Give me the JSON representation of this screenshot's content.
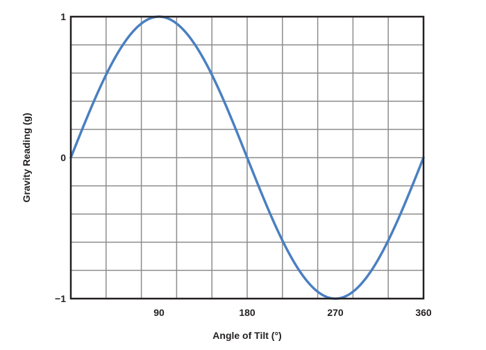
{
  "chart_data": {
    "type": "line",
    "title": "",
    "xlabel": "Angle of Tilt (°)",
    "ylabel": "Gravity Reading (g)",
    "xlim": [
      0,
      360
    ],
    "ylim": [
      -1,
      1
    ],
    "x_ticks": [
      90,
      180,
      270,
      360
    ],
    "x_tick_labels": [
      "90",
      "180",
      "270",
      "360"
    ],
    "y_ticks": [
      -1,
      0,
      1
    ],
    "y_tick_labels": [
      "−1",
      "0",
      "1"
    ],
    "grid": true,
    "grid_divisions": {
      "x": 10,
      "y": 10
    },
    "legend": null,
    "series": [
      {
        "name": "Gravity Reading",
        "function": "sin(angle)",
        "color": "#4a7fc1",
        "x": [
          0,
          30,
          45,
          60,
          90,
          120,
          135,
          150,
          180,
          210,
          225,
          240,
          270,
          300,
          315,
          330,
          360
        ],
        "values": [
          0,
          0.5,
          0.707,
          0.866,
          1,
          0.866,
          0.707,
          0.5,
          0,
          -0.5,
          -0.707,
          -0.866,
          -1,
          -0.866,
          -0.707,
          -0.5,
          0
        ]
      }
    ]
  },
  "colors": {
    "curve": "#4a7fc1",
    "grid": "#8c8c8c",
    "frame": "#231f20",
    "text": "#231f20"
  }
}
